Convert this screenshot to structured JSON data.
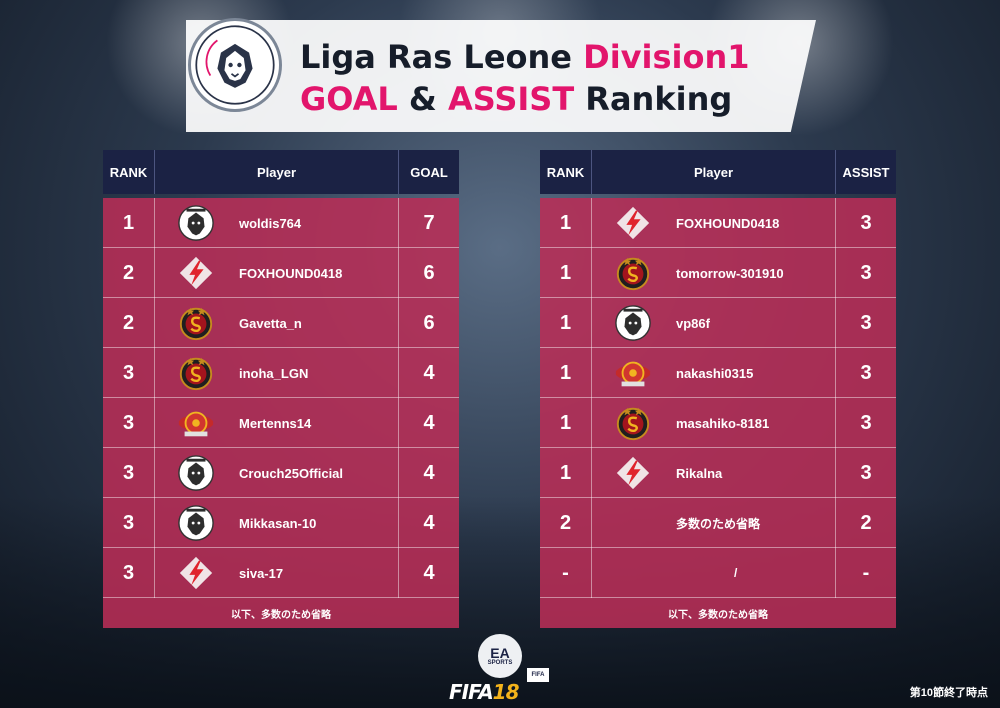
{
  "header": {
    "logo_text": "Liga Ras Leone",
    "title_main": "Liga Ras Leone ",
    "title_division": "Division1",
    "title_goal": "GOAL",
    "title_and": " & ",
    "title_assist": "ASSIST",
    "title_ranking": " Ranking"
  },
  "goal_table": {
    "headers": {
      "rank": "RANK",
      "player": "Player",
      "value": "GOAL"
    },
    "rows": [
      {
        "rank": "1",
        "player": "woldis764",
        "value": "7",
        "emblem": "lion-crest"
      },
      {
        "rank": "2",
        "player": "FOXHOUND0418",
        "value": "6",
        "emblem": "red-lightning-diamond"
      },
      {
        "rank": "2",
        "player": "Gavetta_n",
        "value": "6",
        "emblem": "galatasaray-style-crest"
      },
      {
        "rank": "3",
        "player": "inoha_LGN",
        "value": "4",
        "emblem": "galatasaray-style-crest"
      },
      {
        "rank": "3",
        "player": "Mertenns14",
        "value": "4",
        "emblem": "winged-red-crest"
      },
      {
        "rank": "3",
        "player": "Crouch25Official",
        "value": "4",
        "emblem": "lion-crest"
      },
      {
        "rank": "3",
        "player": "Mikkasan-10",
        "value": "4",
        "emblem": "lion-crest"
      },
      {
        "rank": "3",
        "player": "siva-17",
        "value": "4",
        "emblem": "red-lightning-diamond"
      }
    ],
    "footer": "以下、多数のため省略"
  },
  "assist_table": {
    "headers": {
      "rank": "RANK",
      "player": "Player",
      "value": "ASSIST"
    },
    "rows": [
      {
        "rank": "1",
        "player": "FOXHOUND0418",
        "value": "3",
        "emblem": "red-lightning-diamond"
      },
      {
        "rank": "1",
        "player": "tomorrow-301910",
        "value": "3",
        "emblem": "galatasaray-style-crest"
      },
      {
        "rank": "1",
        "player": "vp86f",
        "value": "3",
        "emblem": "lion-crest"
      },
      {
        "rank": "1",
        "player": "nakashi0315",
        "value": "3",
        "emblem": "winged-red-crest"
      },
      {
        "rank": "1",
        "player": "masahiko-8181",
        "value": "3",
        "emblem": "galatasaray-style-crest"
      },
      {
        "rank": "1",
        "player": "Rikalna",
        "value": "3",
        "emblem": "red-lightning-diamond"
      },
      {
        "rank": "2",
        "player": "多数のため省略",
        "value": "2",
        "emblem": ""
      },
      {
        "rank": "-",
        "player": "/",
        "value": "-",
        "emblem": ""
      }
    ],
    "footer": "以下、多数のため省略"
  },
  "branding": {
    "ea": "EA",
    "sports": "SPORTS",
    "fifa": "FIFA",
    "fifa_version": "18",
    "fifa_tag": "FIFA"
  },
  "timestamp": "第10節終了時点",
  "colors": {
    "header_navy": "#1b2244",
    "row_crimson": "#b82e56",
    "accent_pink": "#e2156c"
  }
}
